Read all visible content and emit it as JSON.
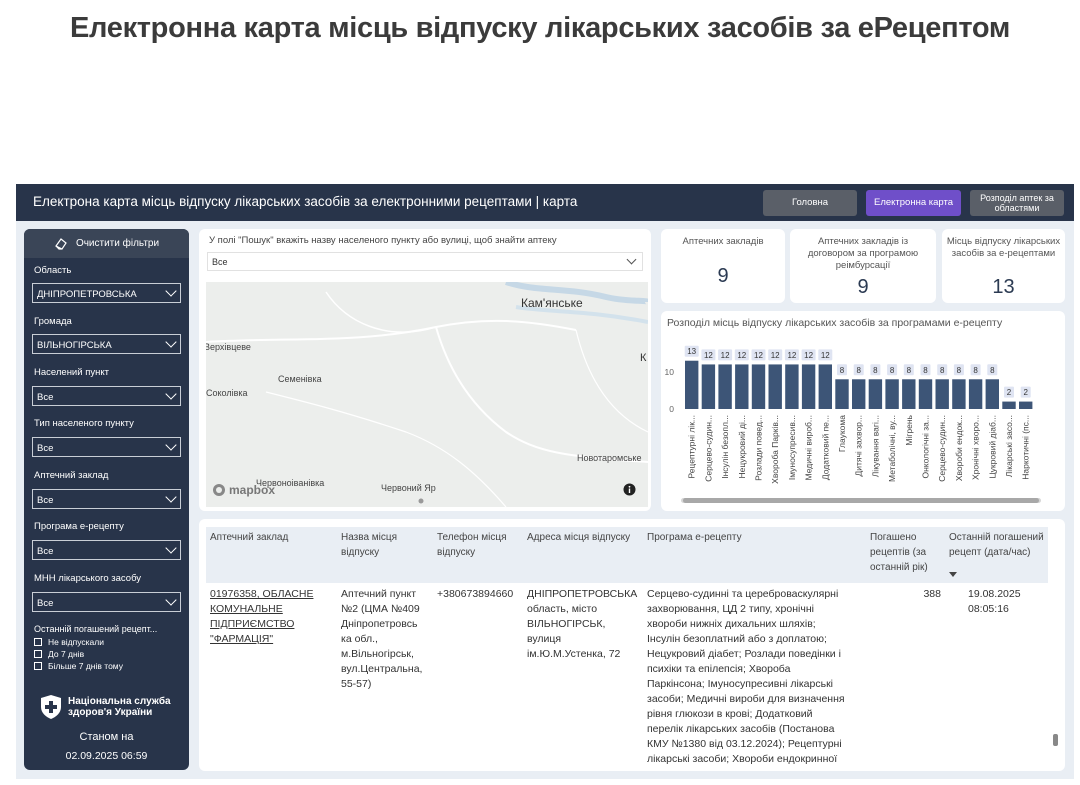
{
  "page": {
    "title": "Електронна карта місць відпуску лікарських засобів за еРецептом"
  },
  "header": {
    "title": "Електрона карта місць відпуску лікарських засобів за електронними рецептами | карта",
    "nav": [
      "Головна",
      "Електронна карта",
      "Розподіл аптек за областями"
    ],
    "active_nav_color": "#6f4fc9"
  },
  "sidebar": {
    "clear_label": "Очистити фільтри",
    "filters": [
      {
        "label": "Область",
        "value": "ДНІПРОПЕТРОВСЬКА"
      },
      {
        "label": "Громада",
        "value": "ВІЛЬНОГІРСЬКА"
      },
      {
        "label": "Населений пункт",
        "value": "Все"
      },
      {
        "label": "Тип населеного пункту",
        "value": "Все"
      },
      {
        "label": "Аптечний заклад",
        "value": "Все"
      },
      {
        "label": "Програма е-рецепту",
        "value": "Все"
      },
      {
        "label": "МНН лікарського засобу",
        "value": "Все"
      }
    ],
    "last_redeemed_label": "Останній погашений рецепт...",
    "checkbox_options": [
      "Не відпускали",
      "До 7 днів",
      "Більше 7 днів тому"
    ],
    "org_name_line1": "Національна служба",
    "org_name_line2": "здоров'я України",
    "as_of_label": "Станом на",
    "as_of_date": "02.09.2025 06:59"
  },
  "search": {
    "hint": "У полі \"Пошук\" вкажіть назву населеного пункту або вулиці, щоб знайти аптеку",
    "value": "Все"
  },
  "map": {
    "labels": [
      "Кам'янське",
      "Верхівцеве",
      "Семенівка",
      "Соколівка",
      "Червоноіванівка",
      "Червоний Яр",
      "Новотаромське",
      "К"
    ],
    "attribution": "mapbox",
    "info_icon": "info-icon"
  },
  "kpis": [
    {
      "label": "Аптечних закладів",
      "value": "9"
    },
    {
      "label": "Аптечних закладів із договором за програмою реімбурсації",
      "value": "9"
    },
    {
      "label": "Місць відпуску лікарських засобів за е-рецептами",
      "value": "13"
    }
  ],
  "chart_data": {
    "type": "bar",
    "title": "Розподіл місць відпуску лікарських засобів за програмами е-рецепту",
    "xlabel": "",
    "ylabel": "",
    "ylim": [
      0,
      14
    ],
    "yticks": [
      0,
      10
    ],
    "grid": false,
    "legend": "none",
    "color": "#3d5577",
    "categories": [
      "Рецептурні лік...",
      "Серцево-судин...",
      "Інсулін безопл...",
      "Нецукровий ді...",
      "Розлади повед...",
      "Хвороба Парків...",
      "Імуносупресив...",
      "Медичні вироб...",
      "Додатковий пе...",
      "Глаукома",
      "Дитячі захвор...",
      "Лікування вагі...",
      "Метаболічні, ву...",
      "Мігрень",
      "Онкологічні за...",
      "Серцево-судин...",
      "Хвороби ендок...",
      "Хронічні хворо...",
      "Цукровий діаб...",
      "Лікарські засо...",
      "Наркотичні (пс..."
    ],
    "values": [
      13,
      12,
      12,
      12,
      12,
      12,
      12,
      12,
      12,
      8,
      8,
      8,
      8,
      8,
      8,
      8,
      8,
      8,
      8,
      2,
      2
    ]
  },
  "table": {
    "headers": [
      "Аптечний заклад",
      "Назва місця відпуску",
      "Телефон місця відпуску",
      "Адреса місця відпуску",
      "Програма е-рецепту",
      "Погашено рецептів (за останній рік)",
      "Останній погашений рецепт (дата/час)"
    ],
    "row": {
      "pharmacy": [
        "01976358, ОБЛАСНЕ",
        "КОМУНАЛЬНЕ",
        "ПІДПРИЄМСТВО",
        "\"ФАРМАЦІЯ\""
      ],
      "place": [
        "Аптечний пункт",
        "№2 (ЦМА №409",
        "Дніпропетровсь",
        "ка обл.,",
        "м.Вільногірськ,",
        "вул.Центральна,",
        "55-57)"
      ],
      "phone": "+380673894660",
      "address": [
        "ДНІПРОПЕТРОВСЬКА",
        "область, місто",
        "ВІЛЬНОГІРСЬК,",
        "вулиця",
        "ім.Ю.М.Устенка, 72"
      ],
      "programs": [
        "Серцево-судинні та цереброваскулярні",
        "захворювання, ЦД 2 типу, хронічні",
        "хвороби нижніх дихальних шляхів;",
        "Інсулін безоплатний або з доплатою;",
        "Нецукровий діабет; Розлади поведінки і",
        "психіки та епілепсія; Хвороба",
        "Паркінсона; Імуносупресивні лікарські",
        "засоби; Медичні вироби для визначення",
        "рівня глюкози в крові; Додатковий",
        "перелік лікарських засобів (Постанова",
        "КМУ №1380 від 03.12.2024); Рецептурні",
        "лікарські засоби; Хвороби ендокринної"
      ],
      "redeemed": "388",
      "last_date": "19.08.2025",
      "last_time": "08:05:16"
    }
  }
}
